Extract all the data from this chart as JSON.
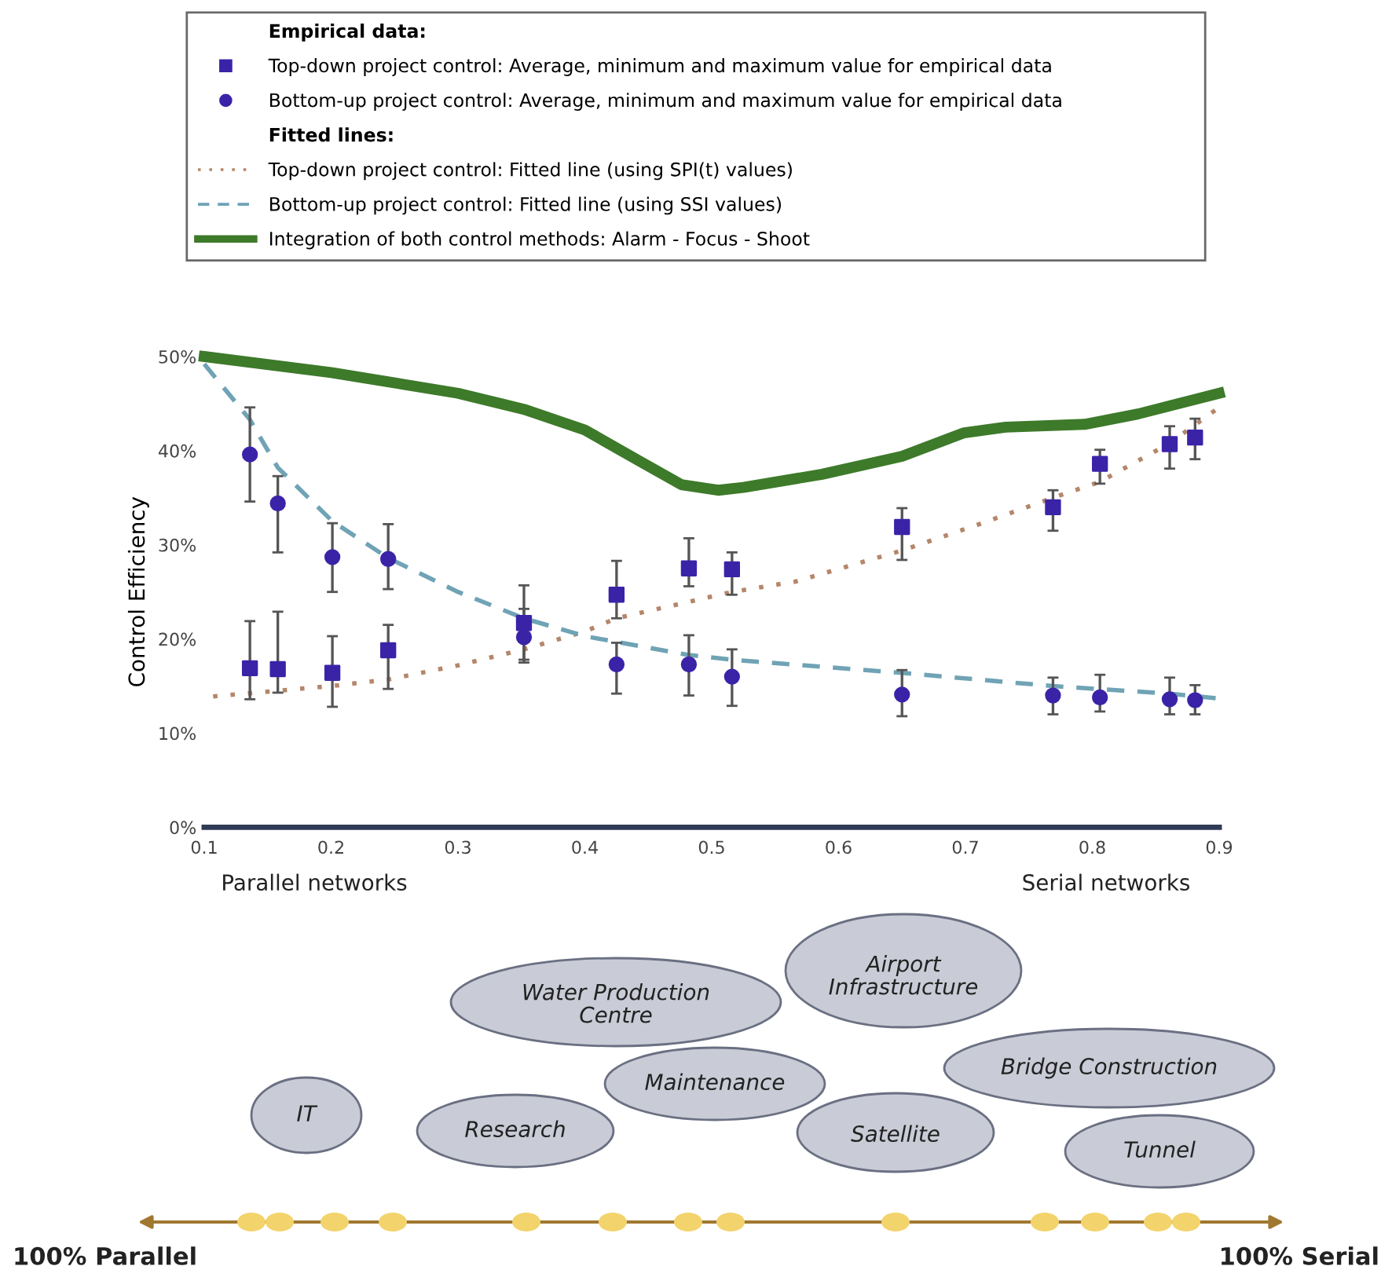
{
  "chart_data": {
    "type": "scatter",
    "ylabel": "Control Efficiency",
    "legend_title": "Empirical data:",
    "legend": "top",
    "xlim": [
      0.1,
      0.9
    ],
    "xticks": [
      0.1,
      0.2,
      0.3,
      0.4,
      0.5,
      0.6,
      0.7,
      0.8,
      0.9
    ],
    "ylim": [
      0,
      50
    ],
    "yticks": [
      {
        "value": 0,
        "label": "0%"
      },
      {
        "value": 10,
        "label": "10%"
      },
      {
        "value": 20,
        "label": "20%"
      },
      {
        "value": 30,
        "label": "30%"
      },
      {
        "value": 40,
        "label": "40%"
      },
      {
        "value": 50,
        "label": "50%"
      }
    ],
    "grid": false,
    "series": [
      {
        "marker": "square",
        "name": "Top-down project control: Average, minimum and maximum value for empirical data",
        "color": "#3b23a8",
        "x": [
          0.136,
          0.158,
          0.201,
          0.245,
          0.352,
          0.425,
          0.482,
          0.516,
          0.65,
          0.769,
          0.806,
          0.861,
          0.881
        ],
        "values": [
          16.9,
          16.8,
          16.4,
          18.8,
          21.7,
          24.7,
          27.5,
          27.4,
          31.9,
          34.0,
          38.6,
          40.7,
          41.4
        ],
        "errors": [
          [
            13.6,
            21.9
          ],
          [
            14.3,
            22.9
          ],
          [
            12.8,
            20.3
          ],
          [
            14.7,
            21.5
          ],
          [
            17.8,
            25.7
          ],
          [
            22.2,
            28.3
          ],
          [
            25.6,
            30.7
          ],
          [
            24.7,
            29.2
          ],
          [
            28.4,
            33.9
          ],
          [
            31.5,
            35.8
          ],
          [
            36.5,
            40.1
          ],
          [
            38.1,
            42.6
          ],
          [
            39.1,
            43.4
          ]
        ]
      },
      {
        "marker": "circle",
        "name": "Bottom-up project control: Average, minimum and maximum value for empirical data",
        "color": "#3b23a8",
        "x": [
          0.136,
          0.158,
          0.201,
          0.245,
          0.352,
          0.425,
          0.482,
          0.516,
          0.65,
          0.769,
          0.806,
          0.861,
          0.881
        ],
        "values": [
          39.6,
          34.4,
          28.7,
          28.5,
          20.2,
          17.3,
          17.3,
          16.0,
          14.1,
          14.0,
          13.8,
          13.6,
          13.5
        ],
        "errors": [
          [
            34.6,
            44.6
          ],
          [
            29.2,
            37.3
          ],
          [
            25.0,
            32.3
          ],
          [
            25.3,
            32.2
          ],
          [
            17.5,
            23.2
          ],
          [
            14.2,
            19.6
          ],
          [
            14.0,
            20.4
          ],
          [
            12.9,
            18.9
          ],
          [
            11.8,
            16.7
          ],
          [
            12.0,
            15.9
          ],
          [
            12.3,
            16.2
          ],
          [
            12.0,
            15.9
          ],
          [
            12.0,
            15.1
          ]
        ]
      },
      {
        "type": "line",
        "line_style": "dotted",
        "name": "Top-down project control: Fitted line (using SPI(t) values)",
        "color": "#b5866a",
        "x": [
          0.107,
          0.2,
          0.245,
          0.3,
          0.352,
          0.4,
          0.425,
          0.516,
          0.566,
          0.65,
          0.711,
          0.769,
          0.806,
          0.861,
          0.898
        ],
        "values": [
          13.9,
          15.0,
          15.7,
          17.2,
          18.9,
          20.8,
          22.2,
          25.0,
          26.1,
          29.4,
          32.2,
          35.0,
          36.7,
          40.8,
          44.4
        ]
      },
      {
        "type": "line",
        "line_style": "dashed",
        "name": "Bottom-up project control: Fitted line (using SSI values)",
        "color": "#6fa3b5",
        "x": [
          0.1,
          0.136,
          0.158,
          0.201,
          0.245,
          0.3,
          0.352,
          0.4,
          0.482,
          0.516,
          0.65,
          0.769,
          0.861,
          0.898
        ],
        "values": [
          49.2,
          43.3,
          38.2,
          32.5,
          28.6,
          25.0,
          22.2,
          20.3,
          18.3,
          17.8,
          16.4,
          15.0,
          14.2,
          13.7
        ]
      },
      {
        "type": "line",
        "line_style": "solid",
        "name": "Integration of both control methods: Alarm - Focus - Shoot",
        "color": "#3d7a2a",
        "x": [
          0.1,
          0.2,
          0.3,
          0.352,
          0.4,
          0.443,
          0.476,
          0.505,
          0.525,
          0.587,
          0.65,
          0.699,
          0.732,
          0.794,
          0.836,
          0.9
        ],
        "values": [
          50.0,
          48.3,
          46.1,
          44.4,
          42.2,
          38.9,
          36.4,
          35.8,
          36.1,
          37.5,
          39.4,
          41.9,
          42.5,
          42.8,
          43.9,
          46.1
        ]
      }
    ],
    "annotations": [
      "Fitted lines:",
      "Parallel networks",
      "Serial networks",
      "Water Production\nCentre",
      "Airport\nInfrastructure",
      "IT",
      "Research",
      "Maintenance",
      "Satellite",
      "Bridge Construction",
      "Tunnel",
      "100% Parallel",
      "100% Serial"
    ]
  }
}
